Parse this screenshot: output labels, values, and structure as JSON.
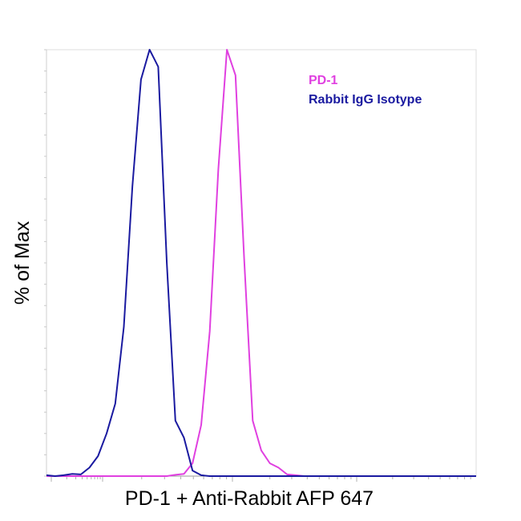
{
  "chart_data": {
    "type": "line",
    "title": "",
    "xlabel": "PD-1 + Anti-Rabbit AFP 647",
    "ylabel": "% of Max",
    "ylim": [
      0,
      100
    ],
    "grid": false,
    "x_tick_labels": false,
    "y_tick_labels": false,
    "legend_position": "top-right",
    "x": [
      0,
      2,
      4,
      6,
      8,
      10,
      12,
      14,
      16,
      18,
      20,
      22,
      24,
      25,
      26,
      28,
      30,
      32,
      34,
      36,
      38,
      40,
      42,
      44,
      46,
      48,
      50,
      52,
      54,
      56,
      58,
      60,
      62,
      64,
      66,
      68,
      70,
      72,
      74,
      76,
      78,
      80,
      82,
      84,
      86,
      88,
      90,
      92,
      94,
      96,
      98,
      100
    ],
    "series": [
      {
        "name": "PD-1",
        "color": "#e040e0",
        "values": [
          0,
          0,
          0,
          0,
          0,
          0,
          0,
          0,
          0,
          0,
          0,
          0,
          0,
          0,
          0,
          0,
          0.3,
          0.5,
          3,
          12,
          34,
          72,
          100,
          94,
          51,
          13,
          6,
          3,
          2,
          0.4,
          0.2,
          0,
          0,
          0,
          0,
          0,
          0,
          0,
          0,
          0,
          0,
          0,
          0,
          0,
          0,
          0,
          0,
          0,
          0,
          0,
          0,
          0
        ]
      },
      {
        "name": "Rabbit IgG Isotype",
        "color": "#1a1aa0",
        "values": [
          0.2,
          0,
          0.2,
          0.5,
          0.4,
          2,
          4.7,
          10,
          17,
          35,
          68,
          93,
          100,
          98,
          96,
          50,
          13,
          9,
          1.3,
          0.2,
          0,
          0,
          0,
          0,
          0,
          0,
          0,
          0,
          0,
          0,
          0,
          0,
          0,
          0,
          0,
          0,
          0,
          0,
          0,
          0,
          0,
          0,
          0,
          0,
          0,
          0,
          0,
          0,
          0,
          0,
          0,
          0
        ]
      }
    ]
  }
}
